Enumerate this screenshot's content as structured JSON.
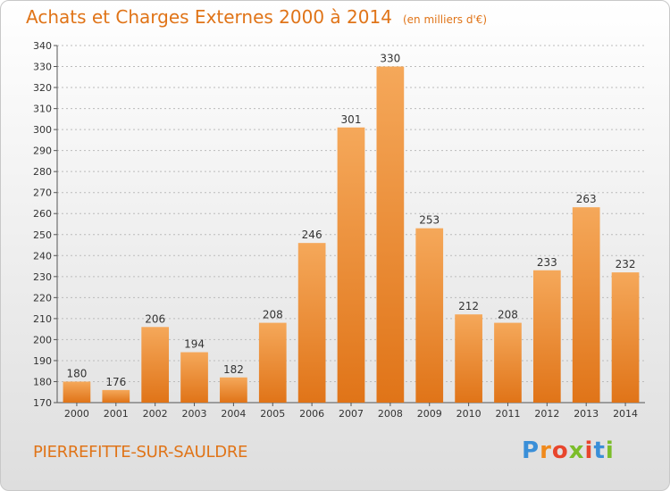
{
  "header": {
    "title": "Achats et Charges Externes 2000 à 2014",
    "unit": "(en milliers d'€)"
  },
  "footer": {
    "city": "PIERREFITTE-SUR-SAULDRE",
    "brand_letters": [
      "P",
      "r",
      "o",
      "x",
      "i",
      "t",
      "i"
    ],
    "brand_colors": [
      "#3a8fd8",
      "#f08a1c",
      "#e8452c",
      "#7bbd2a",
      "#e8452c",
      "#3a8fd8",
      "#7bbd2a"
    ]
  },
  "colors": {
    "bar_light": "#f5a85a",
    "bar_dark": "#e07418",
    "text": "#e07418",
    "grid": "#bbbbbb"
  },
  "chart_data": {
    "type": "bar",
    "categories": [
      "2000",
      "2001",
      "2002",
      "2003",
      "2004",
      "2005",
      "2006",
      "2007",
      "2008",
      "2009",
      "2010",
      "2011",
      "2012",
      "2013",
      "2014"
    ],
    "values": [
      180,
      176,
      206,
      194,
      182,
      208,
      246,
      301,
      330,
      253,
      212,
      208,
      233,
      263,
      232
    ],
    "title": "Achats et Charges Externes 2000 à 2014",
    "subtitle": "(en milliers d'€)",
    "xlabel": "",
    "ylabel": "",
    "ylim": [
      170,
      340
    ],
    "yticks": [
      170,
      180,
      190,
      200,
      210,
      220,
      230,
      240,
      250,
      260,
      270,
      280,
      290,
      300,
      310,
      320,
      330,
      340
    ],
    "grid": true,
    "data_labels": true
  }
}
